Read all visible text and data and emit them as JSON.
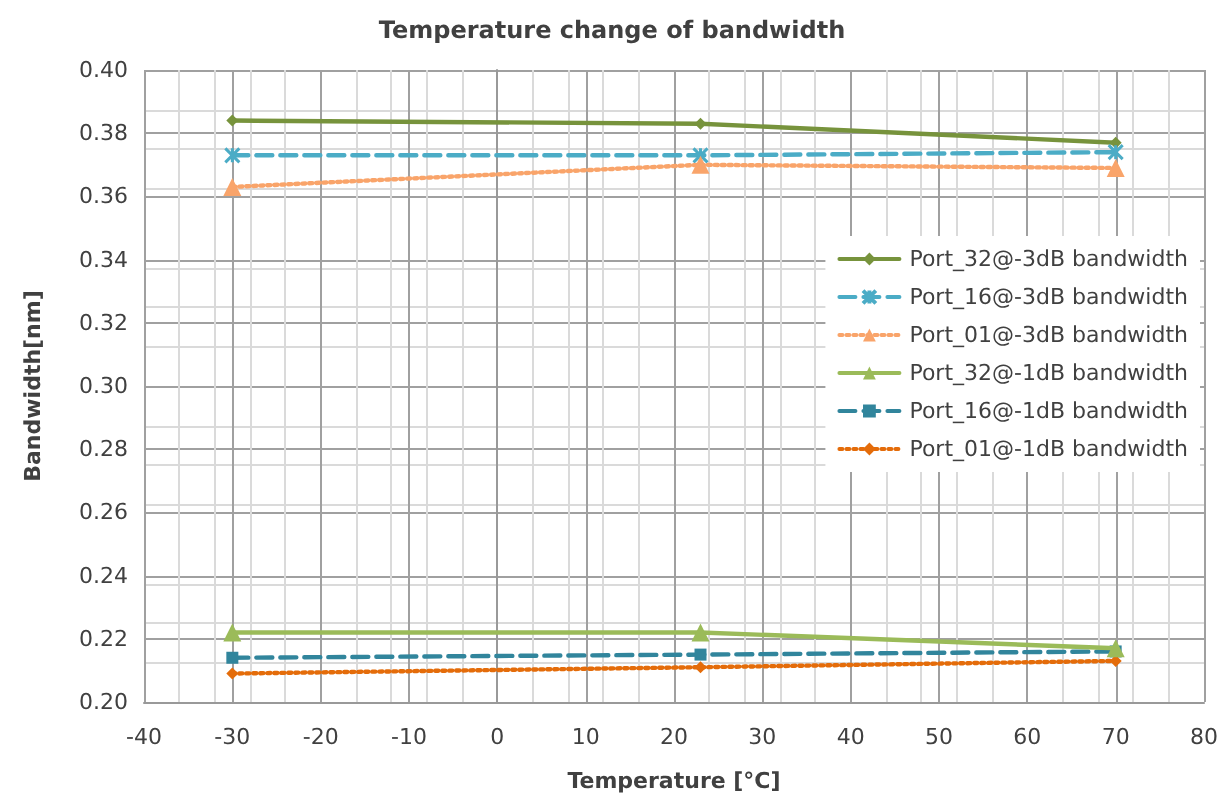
{
  "chart_data": {
    "type": "line",
    "title": "Temperature change of bandwidth",
    "xlabel": "Temperature [°C]",
    "ylabel": "Bandwidth[nm]",
    "x": [
      -30,
      23,
      70
    ],
    "xlim": [
      -40,
      80
    ],
    "xticks": [
      -40,
      -30,
      -20,
      -10,
      0,
      10,
      20,
      30,
      40,
      50,
      60,
      70,
      80
    ],
    "ylim": [
      0.2,
      0.4
    ],
    "yticks": [
      {
        "value": 0.2,
        "label": "0.20"
      },
      0.22,
      0.24,
      0.26,
      0.28,
      {
        "value": 0.3,
        "label": "0.30"
      },
      0.32,
      0.34,
      0.36,
      0.38,
      {
        "value": 0.4,
        "label": "0.40"
      }
    ],
    "grid": true,
    "legend": "right",
    "series": [
      {
        "name": "Port_32@-3dB bandwidth",
        "color": "#77933c",
        "values": [
          0.384,
          0.383,
          0.377
        ],
        "marker": "diamond",
        "line_style": "solid"
      },
      {
        "name": "Port_16@-3dB bandwidth",
        "color": "#4bacc6",
        "values": [
          0.373,
          0.373,
          0.374
        ],
        "marker": "cross",
        "line_style": "dashed"
      },
      {
        "name": "Port_01@-3dB bandwidth",
        "color": "#f9a46a",
        "values": [
          0.363,
          0.37,
          0.369
        ],
        "marker": "triangle",
        "line_style": "dotted"
      },
      {
        "name": "Port_32@-1dB bandwidth",
        "color": "#9bbb59",
        "values": [
          0.222,
          0.222,
          0.217
        ],
        "marker": "triangle",
        "line_style": "solid"
      },
      {
        "name": "Port_16@-1dB bandwidth",
        "color": "#31859c",
        "values": [
          0.214,
          0.215,
          0.216
        ],
        "marker": "square",
        "line_style": "dashed"
      },
      {
        "name": "Port_01@-1dB bandwidth",
        "color": "#e46c0a",
        "values": [
          0.209,
          0.211,
          0.213
        ],
        "marker": "diamond",
        "line_style": "dotted"
      }
    ]
  }
}
